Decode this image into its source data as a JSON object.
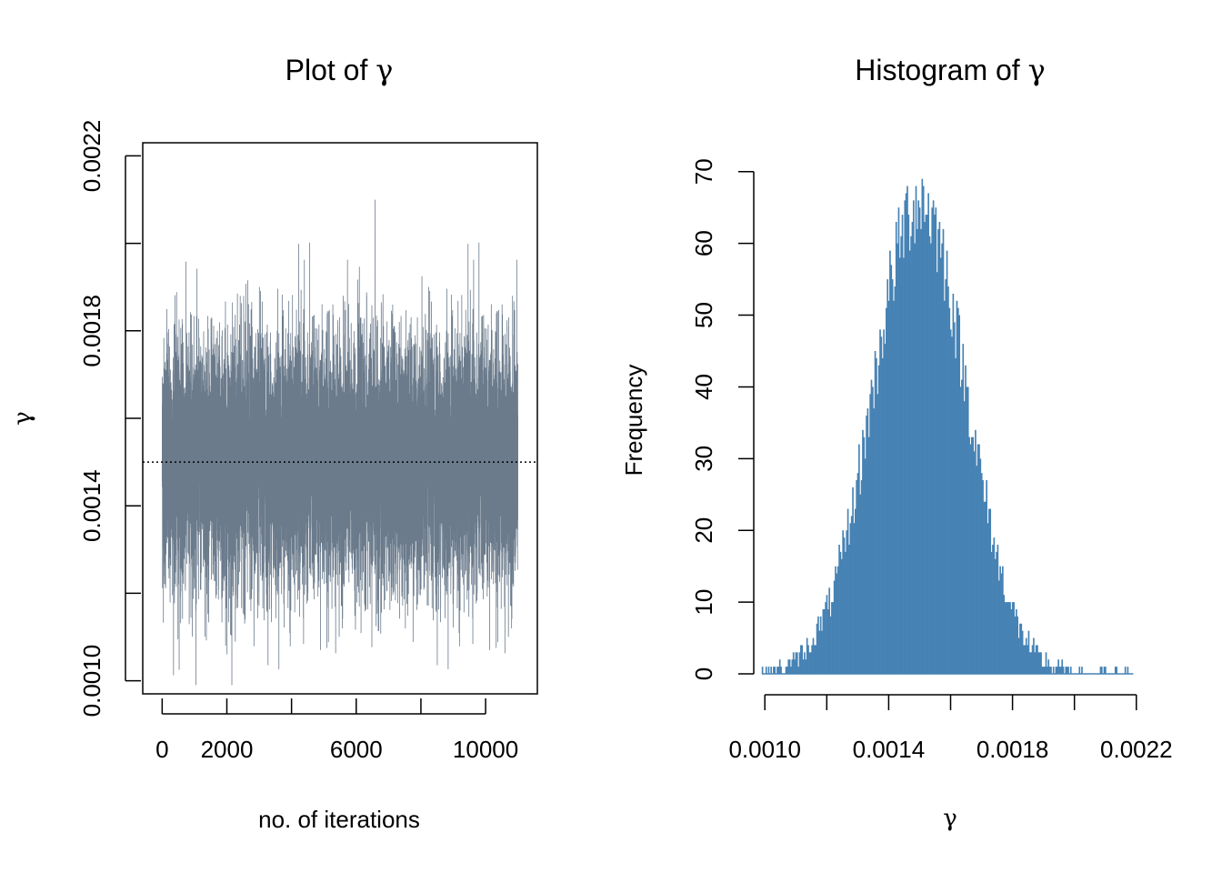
{
  "chart_data": [
    {
      "type": "line",
      "title_prefix": "Plot of ",
      "title_symbol": "γ",
      "xlabel": "no. of iterations",
      "ylabel": "γ",
      "xlim": [
        -600,
        11600
      ],
      "ylim": [
        0.00097,
        0.00223
      ],
      "xticks": [
        0,
        2000,
        4000,
        6000,
        8000,
        10000
      ],
      "xtick_labels": [
        "0",
        "2000",
        "",
        "6000",
        "",
        "10000"
      ],
      "yticks": [
        0.001,
        0.0012,
        0.0014,
        0.0016,
        0.0018,
        0.002,
        0.0022
      ],
      "ytick_labels": [
        "0.0010",
        "",
        "0.0014",
        "",
        "0.0018",
        "",
        "0.0022"
      ],
      "n_iterations": 11000,
      "trace_mean": 0.0015,
      "trace_sd": 0.00014,
      "trace_min": 0.00099,
      "trace_max": 0.00212,
      "series_color": "#6B7B8C",
      "reference_line": {
        "y": 0.0015,
        "style": "dotted"
      },
      "grid": false
    },
    {
      "type": "bar",
      "title_prefix": "Histogram of ",
      "title_symbol": "γ",
      "xlabel": "γ",
      "ylabel": "Frequency",
      "xlim": [
        0.00097,
        0.00223
      ],
      "ylim": [
        0,
        72
      ],
      "xticks": [
        0.001,
        0.0012,
        0.0014,
        0.0016,
        0.0018,
        0.002,
        0.0022
      ],
      "xtick_labels": [
        "0.0010",
        "",
        "0.0014",
        "",
        "0.0018",
        "",
        "0.0022"
      ],
      "yticks": [
        0,
        10,
        20,
        30,
        40,
        50,
        60,
        70
      ],
      "ytick_labels": [
        "0",
        "10",
        "20",
        "30",
        "40",
        "50",
        "60",
        "70"
      ],
      "bin_start": 0.00099,
      "bin_width": 4e-06,
      "bin_count": 300,
      "peak_frequency": 71,
      "bar_color": "#4682B4",
      "grid": false
    }
  ]
}
